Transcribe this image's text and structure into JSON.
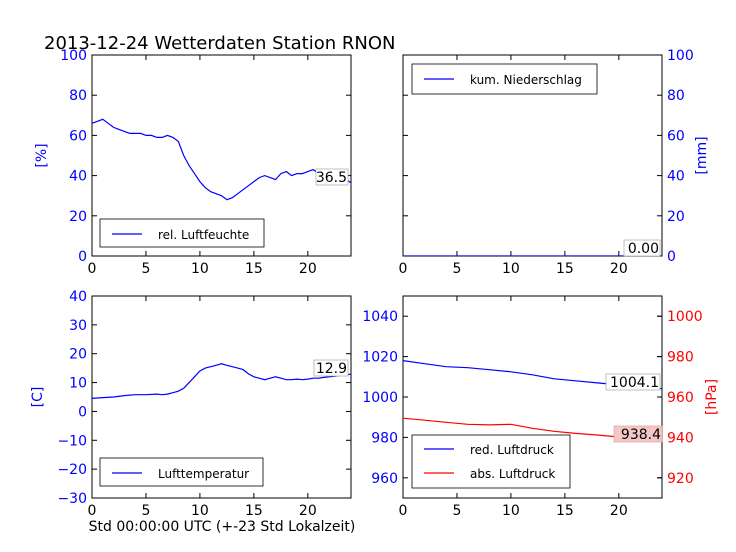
{
  "figure_title": "2013-12-24 Wetterdaten Station RNON",
  "footer_xlabel": "Std 00:00:00 UTC (+-23 Std Lokalzeit)",
  "colors": {
    "blue": "#0000ff",
    "red": "#ff0000",
    "value_box_red": "#f4c7c7",
    "axis": "#000000"
  },
  "chart_data": [
    {
      "id": "humidity",
      "type": "line",
      "xlim": [
        0,
        24
      ],
      "xticks": [
        "0",
        "5",
        "10",
        "15",
        "20"
      ],
      "ylim": [
        0,
        100
      ],
      "yticks": [
        "0",
        "20",
        "40",
        "60",
        "80",
        "100"
      ],
      "ylabel": "[%]",
      "legend_loc": "lower-left",
      "current_value": "36.5",
      "series": [
        {
          "name": "rel. Luftfeuchte",
          "color": "#0000ff",
          "x": [
            0,
            0.5,
            1,
            1.5,
            2,
            2.5,
            3,
            3.5,
            4,
            4.5,
            5,
            5.5,
            6,
            6.5,
            7,
            7.5,
            8,
            8.5,
            9,
            9.5,
            10,
            10.5,
            11,
            11.5,
            12,
            12.5,
            13,
            13.5,
            14,
            14.5,
            15,
            15.5,
            16,
            16.5,
            17,
            17.5,
            18,
            18.5,
            19,
            19.5,
            20,
            20.5,
            21,
            21.5,
            22,
            22.5,
            23,
            23.5,
            24
          ],
          "y": [
            66,
            67,
            68,
            66,
            64,
            63,
            62,
            61,
            61,
            61,
            60,
            60,
            59,
            59,
            60,
            59,
            57,
            50,
            45,
            41,
            37,
            34,
            32,
            31,
            30,
            28,
            29,
            31,
            33,
            35,
            37,
            39,
            40,
            39,
            38,
            41,
            42,
            40,
            41,
            41,
            42,
            43,
            41,
            43,
            42,
            41,
            40,
            38,
            36.5
          ]
        }
      ]
    },
    {
      "id": "precipitation",
      "type": "line",
      "xlim": [
        0,
        24
      ],
      "xticks": [
        "0",
        "5",
        "10",
        "15",
        "20"
      ],
      "ylim": [
        0,
        100
      ],
      "yticks": [
        "0",
        "20",
        "40",
        "60",
        "80",
        "100"
      ],
      "ylabel": "[mm]",
      "legend_loc": "upper-left",
      "current_value": "0.00",
      "series": [
        {
          "name": "kum. Niederschlag",
          "color": "#0000ff",
          "x": [
            0,
            24
          ],
          "y": [
            0,
            0
          ]
        }
      ]
    },
    {
      "id": "temperature",
      "type": "line",
      "xlim": [
        0,
        24
      ],
      "xticks": [
        "0",
        "5",
        "10",
        "15",
        "20"
      ],
      "ylim": [
        -30,
        40
      ],
      "yticks": [
        "−30",
        "−20",
        "−10",
        "0",
        "10",
        "20",
        "30",
        "40"
      ],
      "ylabel": "[C]",
      "legend_loc": "lower-left",
      "current_value": "12.9",
      "series": [
        {
          "name": "Lufttemperatur",
          "color": "#0000ff",
          "x": [
            0,
            1,
            2,
            3,
            4,
            5,
            6,
            6.5,
            7,
            7.5,
            8,
            8.5,
            9,
            9.5,
            10,
            10.5,
            11,
            11.5,
            12,
            12.5,
            13,
            13.5,
            14,
            14.5,
            15,
            15.5,
            16,
            16.5,
            17,
            17.5,
            18,
            18.5,
            19,
            19.5,
            20,
            20.5,
            21,
            21.5,
            22,
            22.5,
            23,
            23.5,
            24
          ],
          "y": [
            4.5,
            4.8,
            5.0,
            5.5,
            5.8,
            5.8,
            6.0,
            5.8,
            6.0,
            6.5,
            7,
            8,
            10,
            12,
            14,
            15,
            15.5,
            16,
            16.5,
            16,
            15.5,
            15,
            14.5,
            13,
            12,
            11.5,
            11,
            11.5,
            12,
            11.5,
            11,
            11,
            11.2,
            11,
            11.2,
            11.5,
            11.5,
            11.8,
            12,
            12.2,
            12.5,
            12.7,
            12.9
          ]
        }
      ]
    },
    {
      "id": "pressure",
      "type": "line",
      "xlim": [
        0,
        24
      ],
      "xticks": [
        "0",
        "5",
        "10",
        "15",
        "20"
      ],
      "ylim": [
        950,
        1050
      ],
      "yticks": [
        "960",
        "980",
        "1000",
        "1020",
        "1040"
      ],
      "ylim_right": [
        910,
        1010
      ],
      "yticks_right": [
        "920",
        "940",
        "960",
        "980",
        "1000"
      ],
      "ylabel_right": "[hPa]",
      "legend_loc": "lower-left",
      "current_value": "1004.1",
      "current_value_secondary": "938.4",
      "series": [
        {
          "name": "red. Luftdruck",
          "color": "#0000ff",
          "axis": "left",
          "x": [
            0,
            2,
            4,
            6,
            8,
            10,
            12,
            14,
            16,
            18,
            20,
            22,
            24
          ],
          "y": [
            1018,
            1016.5,
            1015,
            1014.5,
            1013.5,
            1012.5,
            1011,
            1009,
            1008,
            1007,
            1006,
            1005,
            1004.1
          ]
        },
        {
          "name": "abs. Luftdruck",
          "color": "#ff0000",
          "axis": "right",
          "x": [
            0,
            2,
            4,
            6,
            8,
            10,
            12,
            14,
            16,
            18,
            20,
            22,
            24
          ],
          "y": [
            949.5,
            948.5,
            947.5,
            946.5,
            946.2,
            946.5,
            944.5,
            943,
            942,
            941.2,
            940.2,
            939.2,
            938.4
          ]
        }
      ]
    }
  ]
}
